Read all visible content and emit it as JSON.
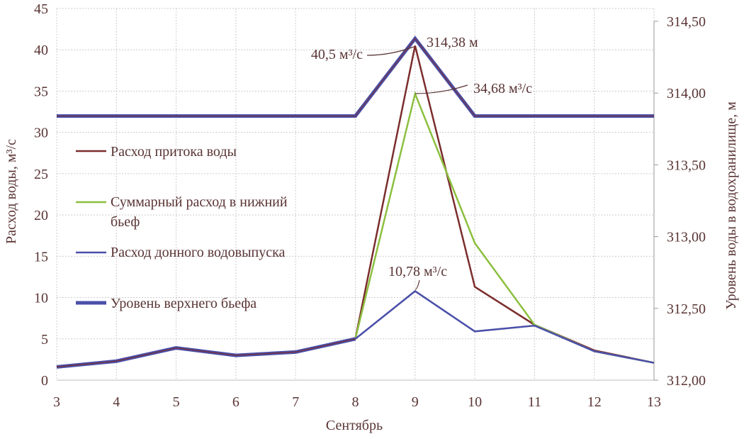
{
  "chart_data": {
    "type": "line",
    "x": [
      3,
      4,
      5,
      6,
      7,
      8,
      9,
      10,
      11,
      12,
      13
    ],
    "xlabel": "Сентябрь",
    "ylabel": "Расход воды, м³/с",
    "y2label": "Уровень воды в водохранилище, м",
    "ylim": [
      0,
      45
    ],
    "y2lim": [
      312.0,
      314.5
    ],
    "yticks": [
      "0",
      "5",
      "10",
      "15",
      "20",
      "25",
      "30",
      "35",
      "40",
      "45"
    ],
    "y2ticks": [
      "312,00",
      "312,50",
      "313,00",
      "313,50",
      "314,00",
      "314,50"
    ],
    "grid": true,
    "legend_placement": "left",
    "series": [
      {
        "name": "Расход притока воды",
        "axis": "left",
        "color": "#7b2d2d",
        "values": [
          1.6,
          2.3,
          3.9,
          3.0,
          3.4,
          5.0,
          40.5,
          11.3,
          6.7,
          3.6,
          2.1
        ]
      },
      {
        "name": "Суммарный расход в нижний бьеф",
        "axis": "left",
        "color": "#8cbf3f",
        "values": [
          1.6,
          2.3,
          3.9,
          3.0,
          3.4,
          5.0,
          34.68,
          16.6,
          6.7,
          3.5,
          2.1
        ]
      },
      {
        "name": "Расход донного водовыпуска",
        "axis": "left",
        "color": "#4a4fa8",
        "values": [
          1.6,
          2.3,
          3.9,
          3.0,
          3.4,
          5.0,
          10.78,
          5.9,
          6.6,
          3.5,
          2.1
        ]
      },
      {
        "name": "Уровень верхнего бьефа",
        "axis": "right",
        "color": "#4a4fa8",
        "values": [
          313.84,
          313.84,
          313.84,
          313.84,
          313.84,
          313.84,
          314.38,
          313.84,
          313.84,
          313.84,
          313.84
        ]
      }
    ],
    "legend_lines": [
      "Расход притока воды",
      "Суммарный расход в нижний",
      "бьеф",
      "Расход донного водовыпуска",
      "Уровень верхнего бьефа"
    ],
    "annotations": [
      "40,5 м³/с",
      "314,38 м",
      "34,68 м³/с",
      "10,78 м³/с"
    ]
  }
}
